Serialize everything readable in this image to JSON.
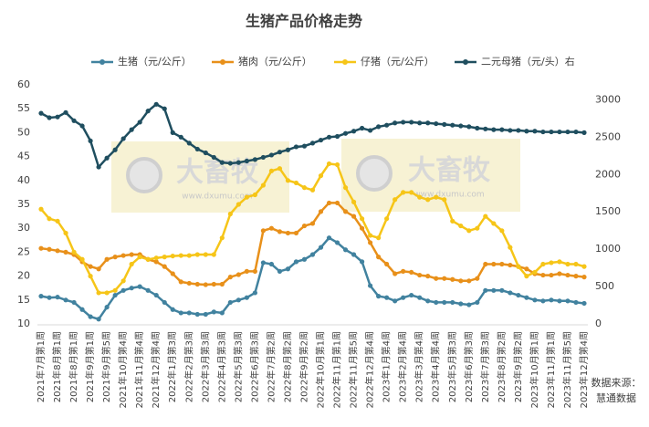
{
  "chart_data": {
    "type": "line",
    "title": "生猪产品价格走势",
    "categories": [
      "2021年7月第1周",
      null,
      "2021年8月第1周",
      null,
      "2021年8月第1周",
      null,
      "2021年9月第1周",
      null,
      "2021年9月第5周",
      null,
      "2021年10月第4周",
      null,
      "2021年11月第4周",
      null,
      "2021年12月第4周",
      null,
      "2022年1月第3周",
      null,
      "2022年2月第3周",
      null,
      "2022年3月第3周",
      null,
      "2022年4月第3周",
      null,
      "2022年5月第3周",
      null,
      "2022年6月第3周",
      null,
      "2022年7月第2周",
      null,
      "2022年8月第2周",
      null,
      "2022年9月第2周",
      null,
      "2022年10月第1周",
      null,
      "2022年11月第1周",
      null,
      "2022年11月第5周",
      null,
      "2022年12月第4周",
      null,
      "2023年1月第4周",
      null,
      "2023年2月第4周",
      null,
      "2023年3月第4周",
      null,
      "2023年4月第4周",
      null,
      "2023年5月第3周",
      null,
      "2023年6月第3周",
      null,
      "2023年7月第3周",
      null,
      "2023年8月第2周",
      null,
      "2023年9月第2周",
      null,
      "2023年10月第1周",
      null,
      "2023年11月第1周",
      null,
      "2023年11月第5周",
      null,
      "2023年12月第4周"
    ],
    "series": [
      {
        "name": "生猪（元/公斤）",
        "color": "#41829f",
        "values": [
          15.8,
          15.5,
          15.6,
          15.0,
          14.5,
          13.0,
          11.5,
          11.0,
          13.5,
          16.0,
          17.0,
          17.5,
          17.8,
          17.0,
          16.0,
          14.5,
          13.0,
          12.3,
          12.3,
          12.0,
          12.0,
          12.5,
          12.3,
          14.5,
          15.0,
          15.5,
          16.5,
          22.8,
          22.5,
          21.0,
          21.5,
          23.0,
          23.5,
          24.5,
          26.0,
          28.0,
          27.0,
          25.5,
          24.5,
          23.0,
          18.0,
          15.8,
          15.5,
          14.8,
          15.5,
          16.0,
          15.5,
          14.8,
          14.5,
          14.5,
          14.5,
          14.2,
          14.0,
          14.5,
          17.0,
          17.0,
          17.0,
          16.5,
          16.0,
          15.5,
          15.0,
          14.8,
          15.0,
          14.8,
          14.8,
          14.5,
          14.3
        ]
      },
      {
        "name": "猪肉（元/公斤）",
        "color": "#e8901a",
        "values": [
          25.8,
          25.6,
          25.3,
          25.0,
          24.5,
          23.0,
          22.0,
          21.5,
          23.5,
          24.0,
          24.3,
          24.5,
          24.5,
          23.5,
          23.0,
          22.0,
          20.5,
          18.8,
          18.5,
          18.3,
          18.2,
          18.3,
          18.3,
          19.8,
          20.3,
          21.0,
          21.0,
          29.5,
          30.0,
          29.3,
          29.0,
          29.0,
          30.5,
          31.0,
          33.5,
          35.3,
          35.3,
          33.5,
          32.5,
          30.0,
          27.0,
          24.0,
          22.5,
          20.5,
          21.0,
          20.8,
          20.2,
          20.0,
          19.5,
          19.5,
          19.3,
          19.0,
          19.0,
          19.5,
          22.5,
          22.5,
          22.5,
          22.3,
          22.0,
          21.5,
          20.5,
          20.2,
          20.2,
          20.5,
          20.2,
          20.0,
          19.8
        ]
      },
      {
        "name": "仔猪（元/公斤）",
        "color": "#f6c518",
        "values": [
          34.0,
          32.0,
          31.5,
          29.0,
          25.0,
          23.5,
          20.0,
          16.5,
          16.5,
          17.0,
          19.0,
          22.5,
          24.0,
          23.5,
          23.8,
          24.0,
          24.2,
          24.3,
          24.3,
          24.5,
          24.5,
          24.5,
          28.0,
          33.0,
          35.0,
          36.5,
          37.0,
          39.0,
          42.0,
          42.5,
          40.0,
          39.5,
          38.5,
          38.0,
          41.0,
          43.5,
          43.3,
          38.5,
          35.5,
          32.0,
          28.5,
          28.0,
          32.0,
          36.0,
          37.5,
          37.5,
          36.5,
          36.0,
          36.5,
          36.0,
          31.5,
          30.5,
          29.5,
          30.0,
          32.5,
          31.0,
          29.5,
          26.0,
          22.0,
          20.0,
          20.8,
          22.5,
          22.8,
          23.0,
          22.5,
          22.5,
          22.0
        ]
      },
      {
        "name": "二元母猪（元/头）右",
        "color": "#1f4e5f",
        "axis": "y2",
        "values": [
          2820,
          2760,
          2770,
          2830,
          2720,
          2650,
          2450,
          2100,
          2220,
          2330,
          2480,
          2600,
          2700,
          2850,
          2940,
          2880,
          2560,
          2500,
          2420,
          2340,
          2290,
          2230,
          2160,
          2150,
          2160,
          2180,
          2200,
          2230,
          2260,
          2300,
          2330,
          2370,
          2380,
          2420,
          2460,
          2500,
          2510,
          2550,
          2580,
          2620,
          2590,
          2640,
          2660,
          2690,
          2700,
          2700,
          2690,
          2690,
          2680,
          2670,
          2660,
          2650,
          2640,
          2620,
          2610,
          2600,
          2600,
          2590,
          2590,
          2580,
          2580,
          2570,
          2570,
          2570,
          2570,
          2570,
          2560
        ]
      }
    ],
    "ylim": [
      10,
      60
    ],
    "yticks": [
      10,
      15,
      20,
      25,
      30,
      35,
      40,
      45,
      50,
      55,
      60
    ],
    "y2lim": [
      0,
      3200
    ],
    "y2ticks": [
      0,
      500,
      1000,
      1500,
      2000,
      2500,
      3000
    ],
    "legend": "top",
    "watermark": "大畜牧",
    "watermark_url": "www.dxumu.com",
    "source": [
      "数据来源：",
      "慧通数据"
    ]
  }
}
